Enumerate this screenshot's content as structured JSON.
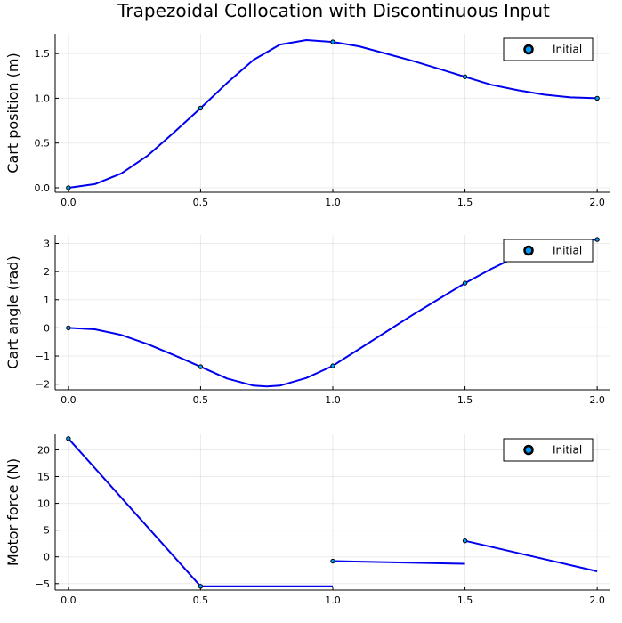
{
  "title": "Trapezoidal Collocation with Discontinuous Input",
  "colors": {
    "line": "#0000ee",
    "marker_fill": "#009af9",
    "marker_stroke": "#000000"
  },
  "chart_data": [
    {
      "type": "line",
      "ylabel": "Cart position (m)",
      "xlim": [
        -0.05,
        2.05
      ],
      "ylim": [
        -0.05,
        1.72
      ],
      "xticks": [
        0,
        0.5,
        1,
        1.5,
        2
      ],
      "xtick_labels": [
        "0.0",
        "0.5",
        "1.0",
        "1.5",
        "2.0"
      ],
      "yticks": [
        0,
        0.5,
        1,
        1.5
      ],
      "ytick_labels": [
        "0.0",
        "0.5",
        "1.0",
        "1.5"
      ],
      "grid": true,
      "legend": {
        "placement": "top-right",
        "entries": [
          "Initial"
        ]
      },
      "series": [
        {
          "segments": [
            {
              "x": [
                0,
                0.1,
                0.2,
                0.3,
                0.4,
                0.5,
                0.6,
                0.7,
                0.8,
                0.9,
                1.0,
                1.1,
                1.2,
                1.3,
                1.4,
                1.5,
                1.6,
                1.7,
                1.8,
                1.9,
                2.0
              ],
              "y": [
                0,
                0.04,
                0.16,
                0.36,
                0.62,
                0.89,
                1.17,
                1.43,
                1.6,
                1.65,
                1.63,
                1.58,
                1.5,
                1.42,
                1.33,
                1.24,
                1.15,
                1.09,
                1.04,
                1.01,
                1.0
              ]
            }
          ]
        }
      ],
      "markers": [
        {
          "name": "Initial",
          "x": [
            0,
            0.5,
            1,
            1.5,
            2
          ],
          "y": [
            0,
            0.89,
            1.63,
            1.24,
            1.0
          ]
        }
      ]
    },
    {
      "type": "line",
      "ylabel": "Cart angle (rad)",
      "xlim": [
        -0.05,
        2.05
      ],
      "ylim": [
        -2.2,
        3.3
      ],
      "xticks": [
        0,
        0.5,
        1,
        1.5,
        2
      ],
      "xtick_labels": [
        "0.0",
        "0.5",
        "1.0",
        "1.5",
        "2.0"
      ],
      "yticks": [
        -2,
        -1,
        0,
        1,
        2,
        3
      ],
      "ytick_labels": [
        "−2",
        "−1",
        "0",
        "1",
        "2",
        "3"
      ],
      "grid": true,
      "legend": {
        "placement": "top-right",
        "entries": [
          "Initial"
        ]
      },
      "series": [
        {
          "segments": [
            {
              "x": [
                0,
                0.1,
                0.2,
                0.3,
                0.4,
                0.5,
                0.6,
                0.7,
                0.75,
                0.8,
                0.9,
                1.0,
                1.1,
                1.2,
                1.3,
                1.4,
                1.5,
                1.6,
                1.7,
                1.8,
                1.9,
                2.0
              ],
              "y": [
                0,
                -0.05,
                -0.25,
                -0.58,
                -0.97,
                -1.38,
                -1.8,
                -2.05,
                -2.08,
                -2.05,
                -1.78,
                -1.35,
                -0.75,
                -0.15,
                0.45,
                1.02,
                1.59,
                2.1,
                2.55,
                2.87,
                3.07,
                3.14
              ]
            }
          ]
        }
      ],
      "markers": [
        {
          "name": "Initial",
          "x": [
            0,
            0.5,
            1,
            1.5,
            2
          ],
          "y": [
            0,
            -1.38,
            -1.35,
            1.59,
            3.14
          ]
        }
      ]
    },
    {
      "type": "line",
      "ylabel": "Motor force (N)",
      "xlim": [
        -0.05,
        2.05
      ],
      "ylim": [
        -6.2,
        22.9
      ],
      "xticks": [
        0,
        0.5,
        1,
        1.5,
        2
      ],
      "xtick_labels": [
        "0.0",
        "0.5",
        "1.0",
        "1.5",
        "2.0"
      ],
      "yticks": [
        -5,
        0,
        5,
        10,
        15,
        20
      ],
      "ytick_labels": [
        "−5",
        "0",
        "5",
        "10",
        "15",
        "20"
      ],
      "grid": true,
      "legend": {
        "placement": "top-right",
        "entries": [
          "Initial"
        ]
      },
      "series": [
        {
          "segments": [
            {
              "x": [
                0,
                0.5
              ],
              "y": [
                22.1,
                -5.5
              ]
            },
            {
              "x": [
                0.5,
                1.0
              ],
              "y": [
                -5.5,
                -5.5
              ]
            },
            {
              "x": [
                1.0,
                1.5
              ],
              "y": [
                -0.8,
                -1.3
              ]
            },
            {
              "x": [
                1.5,
                2.0
              ],
              "y": [
                3.0,
                -2.7
              ]
            }
          ]
        }
      ],
      "markers": [
        {
          "name": "Initial",
          "x": [
            0,
            0.5,
            1,
            1.5
          ],
          "y": [
            22.1,
            -5.5,
            -0.8,
            3.0
          ]
        }
      ]
    }
  ]
}
